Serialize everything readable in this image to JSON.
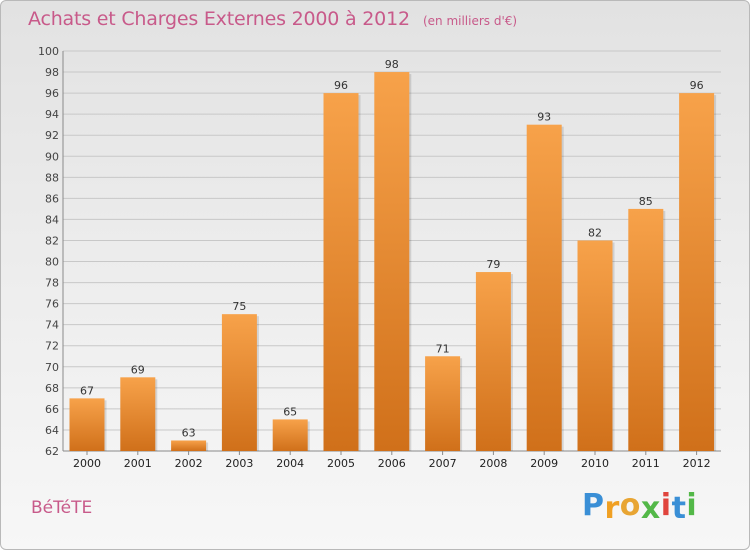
{
  "title": "Achats et Charges Externes 2000 à 2012",
  "unit_note": "(en milliers d'€)",
  "commune": "BéTéTE",
  "logo": {
    "letters": [
      "P",
      "r",
      "o",
      "x",
      "i",
      "t",
      "i"
    ],
    "colors": [
      "#3a8fd6",
      "#f0a023",
      "#e8a533",
      "#53b848",
      "#e0443d",
      "#3a8fd6",
      "#53b848"
    ]
  },
  "colors": {
    "bar_light": "#f7a24a",
    "bar_dark": "#d0701a",
    "text_accent": "#c85a8a"
  },
  "chart_data": {
    "type": "bar",
    "title": "Achats et Charges Externes 2000 à 2012",
    "subtitle": "(en milliers d'€)",
    "categories": [
      "2000",
      "2001",
      "2002",
      "2003",
      "2004",
      "2005",
      "2006",
      "2007",
      "2008",
      "2009",
      "2010",
      "2011",
      "2012"
    ],
    "values": [
      67,
      69,
      63,
      75,
      65,
      96,
      98,
      71,
      79,
      93,
      82,
      85,
      96
    ],
    "ylim": [
      62,
      100
    ],
    "yticks": [
      62,
      64,
      66,
      68,
      70,
      72,
      74,
      76,
      78,
      80,
      82,
      84,
      86,
      88,
      90,
      92,
      94,
      96,
      98,
      100
    ],
    "grid": true,
    "xlabel": "",
    "ylabel": ""
  }
}
